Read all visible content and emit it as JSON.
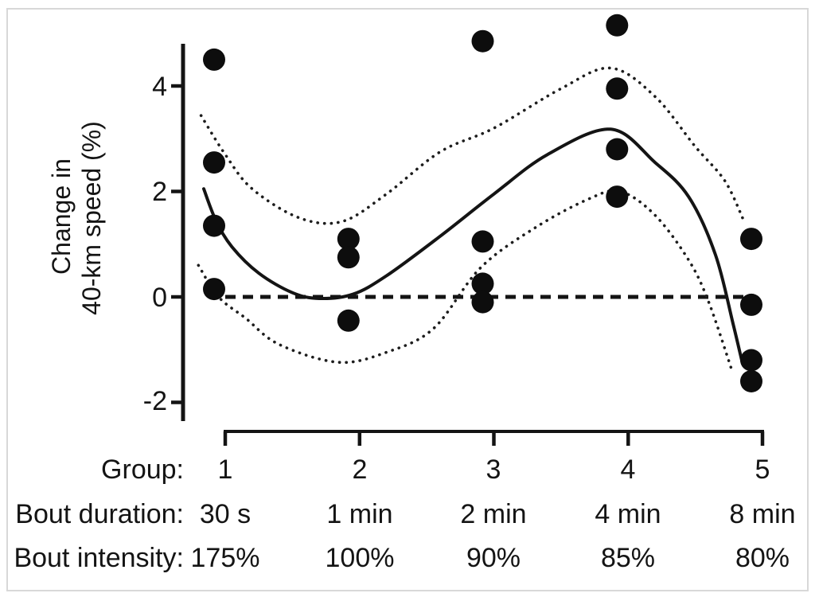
{
  "figure": {
    "background_color": "#ffffff",
    "border_color": "#d8d8d8",
    "ink_color": "#141414",
    "y_axis_title_line1": "Change in",
    "y_axis_title_line2": "40-km speed (%)",
    "row_labels": {
      "group": "Group:",
      "duration": "Bout duration:",
      "intensity": "Bout intensity:"
    }
  },
  "chart_data": {
    "type": "scatter",
    "title": "",
    "ylabel": "Change in 40-km speed (%)",
    "xlabel": "Group",
    "ylim": [
      -2.6,
      5.4
    ],
    "y_ticks": [
      4,
      2,
      0,
      -2
    ],
    "y_tick_labels": [
      "4",
      "2",
      "0",
      "-2"
    ],
    "grid": false,
    "legend": false,
    "zero_reference_line": 0,
    "groups": [
      {
        "group": "1",
        "bout_duration": "30 s",
        "bout_intensity": "175%",
        "values": [
          4.5,
          2.55,
          1.35,
          0.15
        ]
      },
      {
        "group": "2",
        "bout_duration": "1 min",
        "bout_intensity": "100%",
        "values": [
          1.1,
          0.75,
          -0.45
        ]
      },
      {
        "group": "3",
        "bout_duration": "2 min",
        "bout_intensity": "90%",
        "values": [
          4.85,
          1.05,
          0.25,
          -0.1
        ]
      },
      {
        "group": "4",
        "bout_duration": "4 min",
        "bout_intensity": "85%",
        "values": [
          5.15,
          3.95,
          2.8,
          1.9
        ]
      },
      {
        "group": "5",
        "bout_duration": "8 min",
        "bout_intensity": "80%",
        "values": [
          1.1,
          -0.15,
          -1.2,
          -1.6
        ]
      }
    ],
    "curves": {
      "fit_solid": [
        [
          0.84,
          2.05
        ],
        [
          0.93,
          1.45
        ],
        [
          1.05,
          0.95
        ],
        [
          1.25,
          0.45
        ],
        [
          1.5,
          0.08
        ],
        [
          1.7,
          -0.03
        ],
        [
          1.95,
          0.05
        ],
        [
          2.2,
          0.4
        ],
        [
          2.6,
          1.15
        ],
        [
          3.0,
          1.95
        ],
        [
          3.4,
          2.7
        ],
        [
          3.87,
          3.18
        ],
        [
          4.2,
          2.55
        ],
        [
          4.45,
          1.9
        ],
        [
          4.65,
          0.8
        ],
        [
          4.78,
          -0.5
        ],
        [
          4.85,
          -1.25
        ]
      ],
      "upper_dotted": [
        [
          0.82,
          3.44
        ],
        [
          1.0,
          2.7
        ],
        [
          1.2,
          2.05
        ],
        [
          1.55,
          1.5
        ],
        [
          1.87,
          1.43
        ],
        [
          2.2,
          1.95
        ],
        [
          2.6,
          2.75
        ],
        [
          3.0,
          3.2
        ],
        [
          3.5,
          3.95
        ],
        [
          3.87,
          4.34
        ],
        [
          4.2,
          3.8
        ],
        [
          4.5,
          2.85
        ],
        [
          4.72,
          2.2
        ],
        [
          4.86,
          1.45
        ]
      ],
      "lower_dotted": [
        [
          0.8,
          0.6
        ],
        [
          0.95,
          0.0
        ],
        [
          1.15,
          -0.4
        ],
        [
          1.4,
          -0.9
        ],
        [
          1.84,
          -1.24
        ],
        [
          2.2,
          -1.05
        ],
        [
          2.55,
          -0.6
        ],
        [
          2.9,
          0.55
        ],
        [
          3.3,
          1.3
        ],
        [
          3.7,
          1.85
        ],
        [
          3.94,
          2.0
        ],
        [
          4.2,
          1.55
        ],
        [
          4.45,
          0.7
        ],
        [
          4.6,
          -0.1
        ],
        [
          4.78,
          -1.45
        ]
      ],
      "zero_dashed_x_range": [
        1.0,
        4.9
      ]
    }
  }
}
